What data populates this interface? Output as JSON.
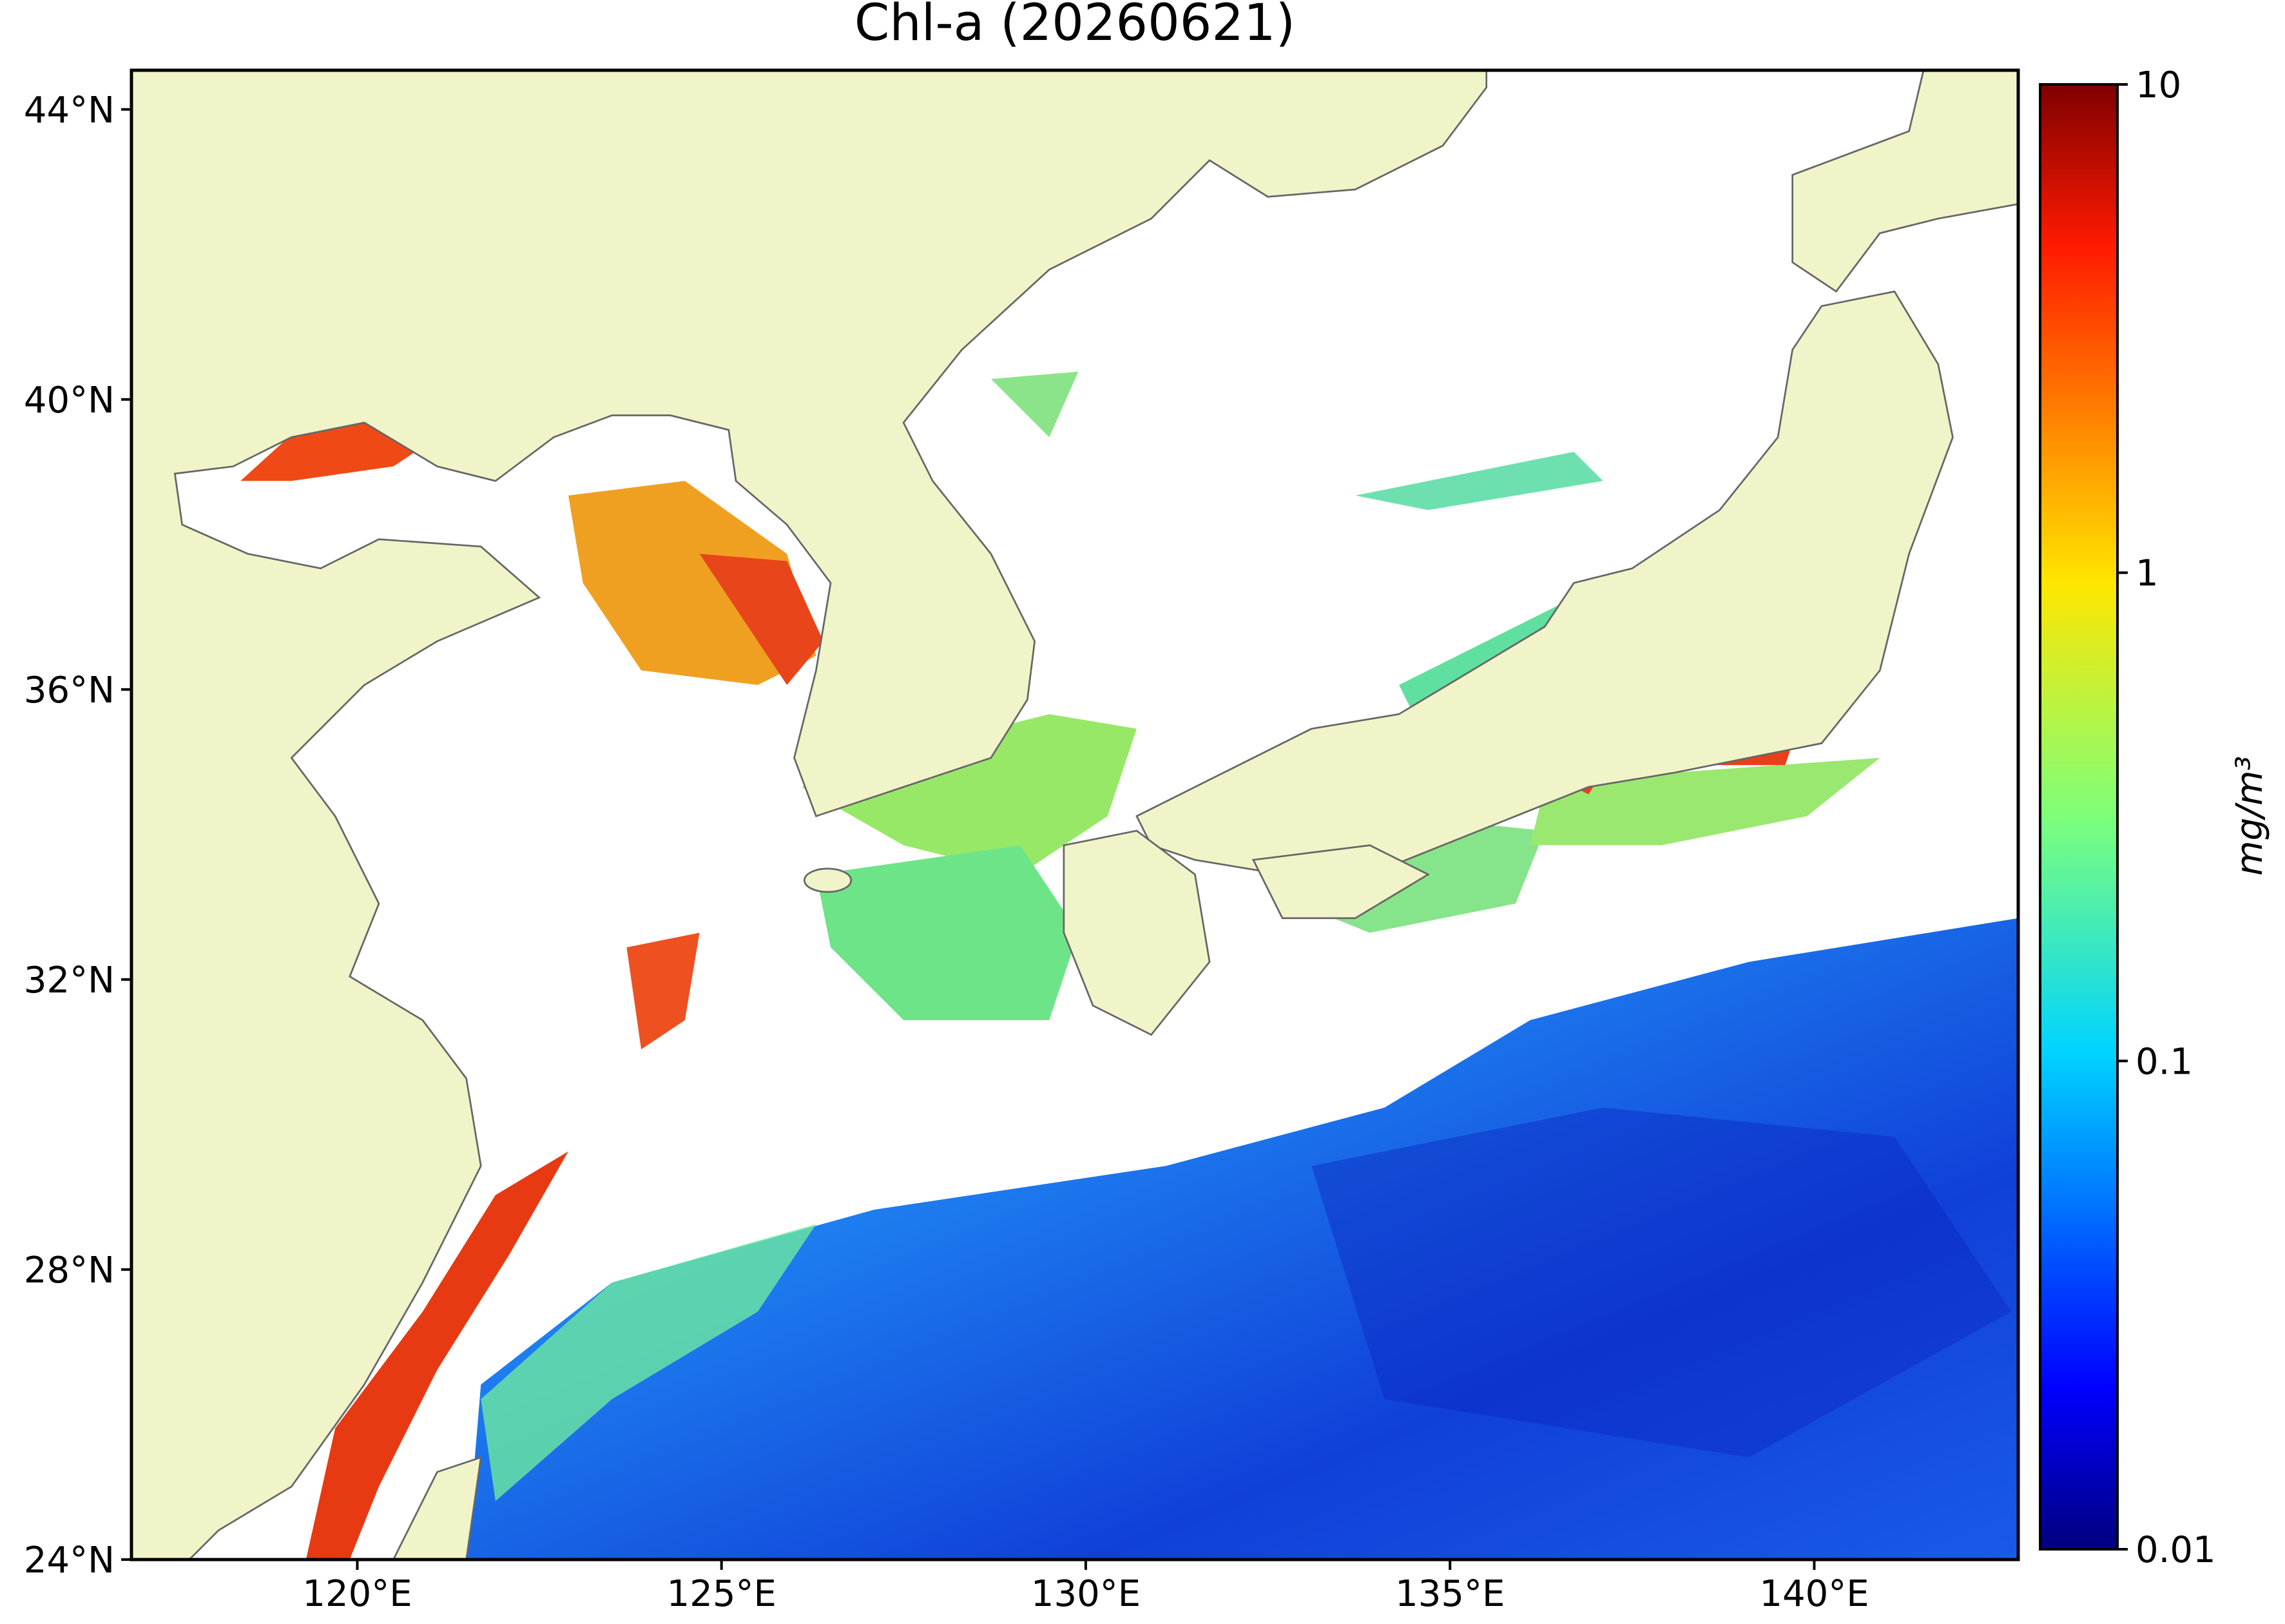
{
  "chart_data": {
    "type": "map",
    "title": "Chl-a (20260621)",
    "xlim": [
      116.9,
      142.8
    ],
    "ylim": [
      24,
      44.54
    ],
    "xticks": [
      {
        "value": 120,
        "label": "120°E"
      },
      {
        "value": 125,
        "label": "125°E"
      },
      {
        "value": 130,
        "label": "130°E"
      },
      {
        "value": 135,
        "label": "135°E"
      },
      {
        "value": 140,
        "label": "140°E"
      }
    ],
    "yticks": [
      {
        "value": 24,
        "label": "24°N"
      },
      {
        "value": 28,
        "label": "28°N"
      },
      {
        "value": 32,
        "label": "32°N"
      },
      {
        "value": 36,
        "label": "36°N"
      },
      {
        "value": 40,
        "label": "40°N"
      },
      {
        "value": 44,
        "label": "44°N"
      }
    ],
    "colorbar": {
      "label": "mg/m³",
      "scale": "log",
      "lim": [
        0.01,
        10
      ],
      "ticks": [
        0.01,
        0.1,
        1,
        10
      ]
    }
  }
}
